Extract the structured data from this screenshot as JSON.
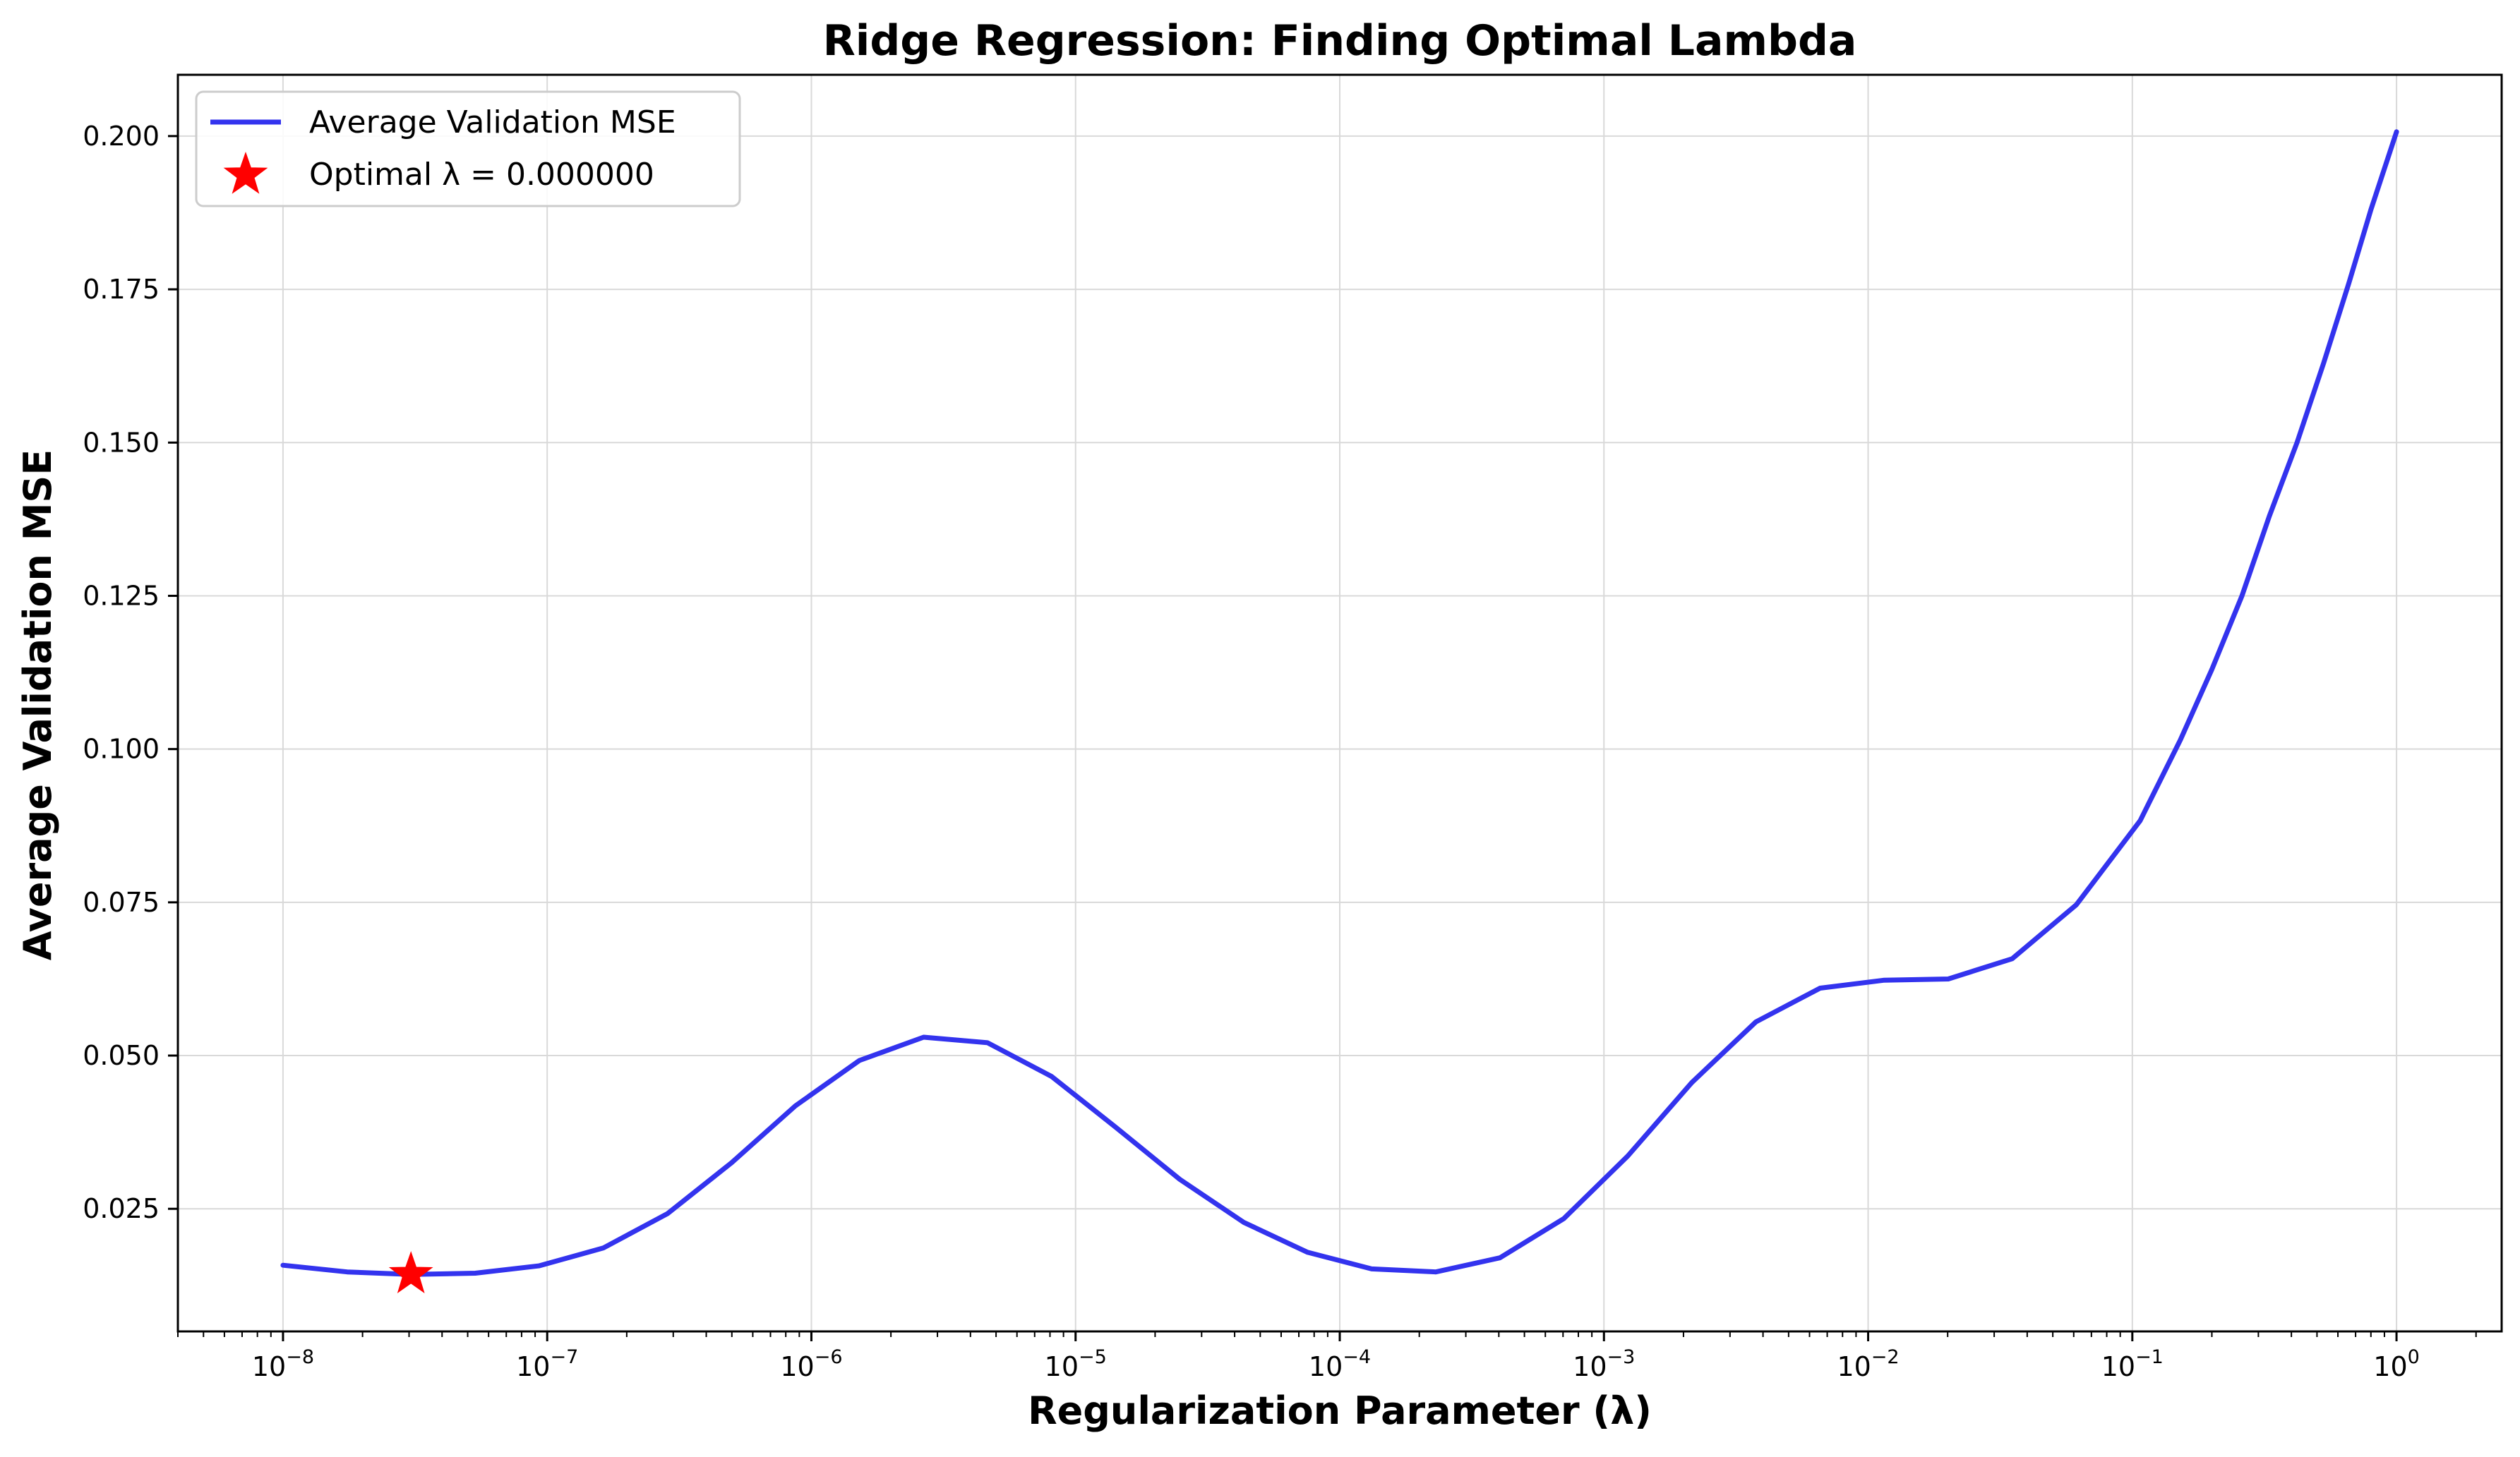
{
  "chart_data": {
    "type": "line",
    "title": "Ridge Regression: Finding Optimal Lambda",
    "xlabel": "Regularization Parameter (λ)",
    "ylabel": "Average Validation MSE",
    "x_scale": "log",
    "xlim": [
      4e-09,
      2.5
    ],
    "ylim": [
      0.005,
      0.21
    ],
    "grid": true,
    "legend_position": "top-left",
    "colors": {
      "line": "#3333ee",
      "marker": "#ff0000"
    },
    "x_ticks": [
      {
        "value": 1e-08,
        "base": "10",
        "exp": "−8"
      },
      {
        "value": 1e-07,
        "base": "10",
        "exp": "−7"
      },
      {
        "value": 1e-06,
        "base": "10",
        "exp": "−6"
      },
      {
        "value": 1e-05,
        "base": "10",
        "exp": "−5"
      },
      {
        "value": 0.0001,
        "base": "10",
        "exp": "−4"
      },
      {
        "value": 0.001,
        "base": "10",
        "exp": "−3"
      },
      {
        "value": 0.01,
        "base": "10",
        "exp": "−2"
      },
      {
        "value": 0.1,
        "base": "10",
        "exp": "−1"
      },
      {
        "value": 1,
        "base": "10",
        "exp": "0"
      }
    ],
    "y_ticks": [
      {
        "value": 0.025,
        "label": "0.025"
      },
      {
        "value": 0.05,
        "label": "0.050"
      },
      {
        "value": 0.075,
        "label": "0.075"
      },
      {
        "value": 0.1,
        "label": "0.100"
      },
      {
        "value": 0.125,
        "label": "0.125"
      },
      {
        "value": 0.15,
        "label": "0.150"
      },
      {
        "value": 0.175,
        "label": "0.175"
      },
      {
        "value": 0.2,
        "label": "0.200"
      }
    ],
    "series": [
      {
        "name": "Average Validation MSE",
        "x": [
          1e-08,
          1.75e-08,
          3.05e-08,
          5.34e-08,
          9.33e-08,
          1.63e-07,
          2.85e-07,
          4.98e-07,
          8.7e-07,
          1.52e-06,
          2.66e-06,
          4.64e-06,
          8.11e-06,
          1.42e-05,
          2.48e-05,
          4.33e-05,
          7.56e-05,
          0.000132,
          0.000231,
          0.000404,
          0.000705,
          0.00123,
          0.00215,
          0.00376,
          0.00658,
          0.0115,
          0.0201,
          0.0351,
          0.0614,
          0.107,
          0.152,
          0.2,
          0.26,
          0.33,
          0.42,
          0.53,
          0.66,
          0.8,
          1.0
        ],
        "y": [
          0.0158,
          0.0147,
          0.0143,
          0.0145,
          0.0157,
          0.0186,
          0.0242,
          0.0325,
          0.0418,
          0.0492,
          0.053,
          0.0521,
          0.0466,
          0.0383,
          0.0298,
          0.0228,
          0.0179,
          0.0152,
          0.0147,
          0.017,
          0.0234,
          0.0336,
          0.0456,
          0.0555,
          0.061,
          0.0623,
          0.0625,
          0.0658,
          0.0746,
          0.0883,
          0.1015,
          0.113,
          0.125,
          0.138,
          0.15,
          0.163,
          0.176,
          0.188,
          0.2007
        ]
      }
    ],
    "optimal_point": {
      "x": 3.05e-08,
      "y": 0.0143,
      "label": "Optimal λ = 0.000000"
    }
  }
}
